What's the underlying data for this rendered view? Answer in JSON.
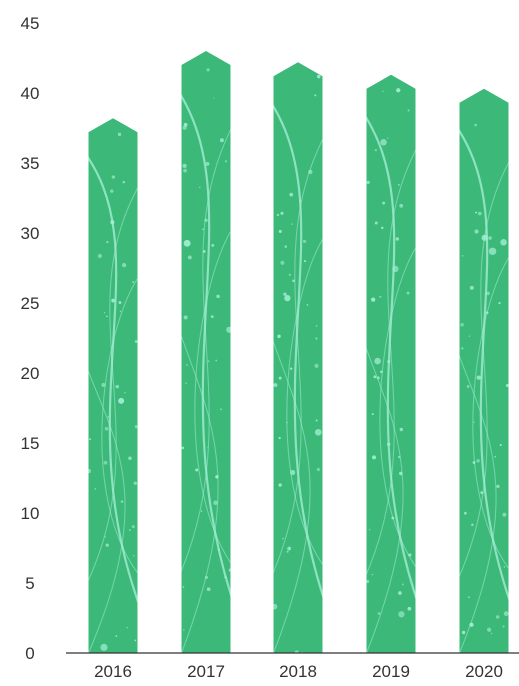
{
  "chart_data": {
    "type": "bar",
    "categories": [
      "2016",
      "2017",
      "2018",
      "2019",
      "2020"
    ],
    "values": [
      38.2,
      43,
      42.2,
      41.3,
      40.3
    ],
    "ylim": [
      0,
      45
    ],
    "yticks": [
      0,
      5,
      10,
      15,
      20,
      25,
      30,
      35,
      40,
      45
    ],
    "title": "",
    "xlabel": "",
    "ylabel": "",
    "grid": false,
    "bar_style": "arrow-top with decorative texture",
    "colors": {
      "bar": "#3cb878",
      "texture": "#a8f0d8",
      "axis": "#333333"
    }
  }
}
